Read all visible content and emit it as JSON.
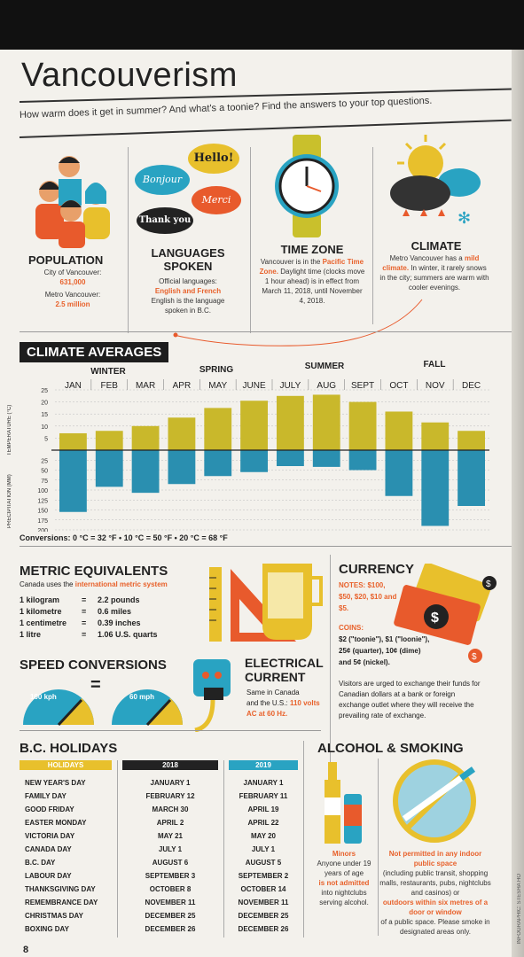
{
  "header": {
    "title": "Vancouverism",
    "subtitle": "How warm does it get in summer? And what's a toonie? Find the answers to your top questions."
  },
  "population": {
    "title": "POPULATION",
    "city_label": "City of Vancouver:",
    "city_value": "631,000",
    "metro_label": "Metro Vancouver:",
    "metro_value": "2.5 million"
  },
  "languages": {
    "title_line1": "LANGUAGES",
    "title_line2": "SPOKEN",
    "line1": "Official languages:",
    "official": "English and French",
    "line2": "English is the language",
    "line3": "spoken in B.C.",
    "bubble_hello": "Hello!",
    "bubble_bonjour": "Bonjour",
    "bubble_merci": "Merci",
    "bubble_thankyou": "Thank you"
  },
  "timezone": {
    "title": "TIME ZONE",
    "line1": "Vancouver is in the",
    "highlight": "Pacific Time Zone.",
    "line2": "Daylight time (clocks move 1 hour ahead) is in effect from March 11, 2018, until November 4, 2018."
  },
  "climate_info": {
    "title": "CLIMATE",
    "line1": "Metro Vancouver has a",
    "highlight": "mild climate.",
    "line2": "In winter, it rarely snows in the city; summers are warm with cooler evenings."
  },
  "climate_averages": {
    "title": "CLIMATE AVERAGES",
    "seasons": [
      "WINTER",
      "SPRING",
      "SUMMER",
      "FALL"
    ],
    "temp_axis_label": "TEMPERATURE (°C)",
    "precip_axis_label": "PRECIPITATION (MM)",
    "conversions": "Conversions: 0 °C = 32 °F  •  10 °C = 50 °F  •  20 °C = 68 °F"
  },
  "chart_data": {
    "type": "bar",
    "categories": [
      "JAN",
      "FEB",
      "MAR",
      "APR",
      "MAY",
      "JUNE",
      "JULY",
      "AUG",
      "SEPT",
      "OCT",
      "NOV",
      "DEC"
    ],
    "series": [
      {
        "name": "TEMPERATURE (°C)",
        "values": [
          7,
          8,
          10,
          13.5,
          17.5,
          20.5,
          22.5,
          23,
          20,
          16,
          11.5,
          8
        ]
      },
      {
        "name": "PRECIPITATION (MM)",
        "values": [
          155,
          92,
          107,
          85,
          65,
          55,
          40,
          42,
          50,
          115,
          190,
          140
        ]
      }
    ],
    "temp_ticks": [
      "25",
      "20",
      "15",
      "10",
      "5"
    ],
    "precip_ticks": [
      "25",
      "50",
      "75",
      "100",
      "125",
      "150",
      "175",
      "200"
    ],
    "temp_range": [
      0,
      25
    ],
    "precip_range": [
      0,
      200
    ],
    "temp_color": "#c9b82b",
    "precip_color": "#2a8fb0"
  },
  "metric": {
    "title": "METRIC EQUIVALENTS",
    "intro": "Canada uses the",
    "intro_highlight": "international metric system",
    "rows": [
      {
        "left": "1 kilogram",
        "right": "2.2 pounds"
      },
      {
        "left": "1 kilometre",
        "right": "0.6 miles"
      },
      {
        "left": "1 centimetre",
        "right": "0.39 inches"
      },
      {
        "left": "1 litre",
        "right": "1.06 U.S. quarts"
      }
    ],
    "eq": "="
  },
  "speed": {
    "title": "SPEED CONVERSIONS",
    "kph": "100 kph",
    "mph": "60 mph",
    "eq": "="
  },
  "electrical": {
    "title_line1": "ELECTRICAL",
    "title_line2": "CURRENT",
    "line1": "Same in Canada",
    "line2": "and the U.S.:",
    "highlight": "110 volts AC at 60 Hz."
  },
  "currency": {
    "title": "CURRENCY",
    "notes": "NOTES: $100, $50, $20, $10 and $5.",
    "coins_label": "COINS:",
    "coins": "$2 (\"toonie\"), $1 (\"loonie\"), 25¢ (quarter), 10¢ (dime) and 5¢ (nickel).",
    "advice": "Visitors are urged to exchange their funds for Canadian dollars at a bank or foreign exchange outlet where they will receive the prevailing rate of exchange."
  },
  "holidays": {
    "title": "B.C. HOLIDAYS",
    "col_holidays": "HOLIDAYS",
    "col_2018": "2018",
    "col_2019": "2019",
    "names": [
      "NEW YEAR'S DAY",
      "FAMILY DAY",
      "GOOD FRIDAY",
      "EASTER MONDAY",
      "VICTORIA DAY",
      "CANADA DAY",
      "B.C. DAY",
      "LABOUR DAY",
      "THANKSGIVING DAY",
      "REMEMBRANCE DAY",
      "CHRISTMAS DAY",
      "BOXING DAY"
    ],
    "y2018": [
      "JANUARY 1",
      "FEBRUARY 12",
      "MARCH 30",
      "APRIL 2",
      "MAY 21",
      "JULY 1",
      "AUGUST 6",
      "SEPTEMBER 3",
      "OCTOBER 8",
      "NOVEMBER 11",
      "DECEMBER 25",
      "DECEMBER 26"
    ],
    "y2019": [
      "JANUARY 1",
      "FEBRUARY 11",
      "APRIL 19",
      "APRIL 22",
      "MAY 20",
      "JULY 1",
      "AUGUST 5",
      "SEPTEMBER 2",
      "OCTOBER 14",
      "NOVEMBER 11",
      "DECEMBER 25",
      "DECEMBER 26"
    ]
  },
  "alcohol": {
    "title": "ALCOHOL & SMOKING",
    "minors": "Minors",
    "minors_text": "Anyone under 19 years of age",
    "not_admitted": "is not admitted",
    "minors_end": "into nightclubs serving alcohol.",
    "smoke_h1": "Not permitted in any indoor public space",
    "smoke_t1": "(including public transit, shopping malls, restaurants, pubs, nightclubs and casinos) or",
    "smoke_h2": "outdoors within six metres of a door or window",
    "smoke_t2": "of a public space. Please smoke in designated areas only."
  },
  "footer": {
    "page_number": "8",
    "credit": "INFOGRAPHIC: STESHA HO"
  }
}
